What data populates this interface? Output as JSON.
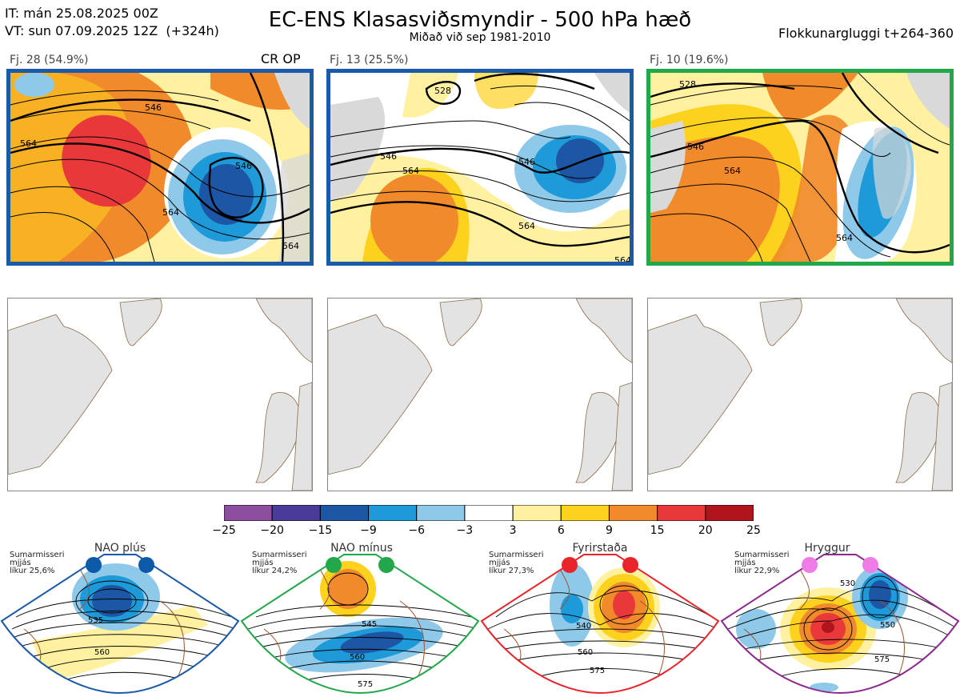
{
  "header": {
    "it_line": "IT: mán 25.08.2025 00Z",
    "vt_line": "VT: sun 07.09.2025 12Z  (+324h)",
    "title": "EC-ENS Klasasviðsmyndir - 500 hPa hæð",
    "subtitle": "Miðað við sep 1981-2010",
    "window": "Flokkunargluggi t+264-360"
  },
  "panels": [
    {
      "label": "Fj. 28 (54.9%)",
      "tag": "CR OP",
      "border": "#1a5aa8",
      "contours": [
        "546",
        "564",
        "546",
        "564",
        "564"
      ]
    },
    {
      "label": "Fj. 13 (25.5%)",
      "tag": "",
      "border": "#1a5aa8",
      "contours": [
        "528",
        "546",
        "564",
        "546",
        "564",
        "564"
      ]
    },
    {
      "label": "Fj. 10 (19.6%)",
      "tag": "",
      "border": "#22a84a",
      "contours": [
        "528",
        "546",
        "564",
        "564"
      ]
    }
  ],
  "colorbar": {
    "ticks": [
      "−25",
      "−20",
      "−15",
      "−9",
      "−6",
      "−3",
      "3",
      "6",
      "9",
      "15",
      "20",
      "25"
    ],
    "colors": [
      "#8e4ea0",
      "#4a3a9a",
      "#1c56a4",
      "#1e9ad8",
      "#8ec9ea",
      "#ffffff",
      "#fff1a0",
      "#fdd21e",
      "#f18a2a",
      "#e8383a",
      "#b0151c"
    ]
  },
  "clusters": [
    {
      "name": "NAO plús",
      "season": "Sumarmisseri",
      "smooth": "mjjás",
      "prob": "líkur 25,6%",
      "dot": "#0d5aa8",
      "border": "#1a5aa8",
      "contours": [
        "535",
        "560"
      ]
    },
    {
      "name": "NAO mínus",
      "season": "Sumarmisseri",
      "smooth": "mjjás",
      "prob": "líkur 24,2%",
      "dot": "#22a84a",
      "border": "#22a84a",
      "contours": [
        "545",
        "560",
        "575"
      ]
    },
    {
      "name": "Fyrirstaða",
      "season": "Sumarmisseri",
      "smooth": "mjjás",
      "prob": "líkur 27,3%",
      "dot": "#e8252a",
      "border": "#e8252a",
      "contours": [
        "540",
        "560",
        "575"
      ]
    },
    {
      "name": "Hryggur",
      "season": "Sumarmisseri",
      "smooth": "mjjás",
      "prob": "líkur 22,9%",
      "dot": "#ee7be6",
      "border": "#8e2a8e",
      "contours": [
        "530",
        "550",
        "575"
      ]
    }
  ]
}
